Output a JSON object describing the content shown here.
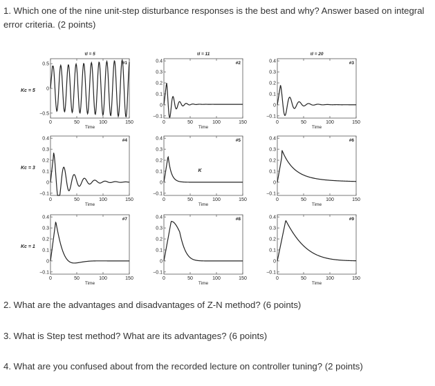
{
  "questions": {
    "q1": "1. Which one of the nine unit-step disturbance responses is the best and why? Answer based on integral error criteria. (2 points)",
    "q2": "2. What are the advantages and disadvantages of Z-N method? (6 points)",
    "q3": "3. What is Step test method? What are its advantages? (6 points)",
    "q4": "4. What are you confused about from the recorded lecture on controller tuning? (2 points)"
  },
  "figure": {
    "col_headers": [
      "τI = 5",
      "τI = 11",
      "τI = 20"
    ],
    "row_labels": [
      "Kc = 5",
      "Kc = 3",
      "Kc = 1"
    ],
    "x_label": "Time",
    "x_ticks": [
      "0",
      "50",
      "100",
      "150"
    ],
    "y_ticks_row1_col1": [
      "0.5",
      "0",
      "−0.5"
    ],
    "y_ticks": [
      "0.4",
      "0.3",
      "0.2",
      "0.1",
      "0",
      "−0.1"
    ],
    "annotation_K": "K",
    "panels": [
      {
        "tag": "#1"
      },
      {
        "tag": "#2"
      },
      {
        "tag": "#3"
      },
      {
        "tag": "#4"
      },
      {
        "tag": "#5"
      },
      {
        "tag": "#6"
      },
      {
        "tag": "#7"
      },
      {
        "tag": "#8"
      },
      {
        "tag": "#9"
      }
    ]
  },
  "chart_data": {
    "type": "line",
    "xlabel": "Time",
    "xlim": [
      0,
      150
    ],
    "charts": [
      {
        "tag": "#1",
        "ylim": [
          -0.6,
          0.6
        ],
        "peak": 0.5,
        "behaviour": "sustained oscillation"
      },
      {
        "tag": "#2",
        "ylim": [
          -0.12,
          0.42
        ],
        "peak": 0.18,
        "behaviour": "fast damped oscillation"
      },
      {
        "tag": "#3",
        "ylim": [
          -0.12,
          0.42
        ],
        "peak": 0.17,
        "behaviour": "damped, settles near 0"
      },
      {
        "tag": "#4",
        "ylim": [
          -0.12,
          0.42
        ],
        "peak": 0.25,
        "behaviour": "damped oscillation"
      },
      {
        "tag": "#5",
        "ylim": [
          -0.12,
          0.42
        ],
        "peak": 0.24,
        "behaviour": "quick settle"
      },
      {
        "tag": "#6",
        "ylim": [
          -0.12,
          0.42
        ],
        "peak": 0.24,
        "behaviour": "slow decay"
      },
      {
        "tag": "#7",
        "ylim": [
          -0.12,
          0.42
        ],
        "peak": 0.36,
        "behaviour": "overshoot then settle"
      },
      {
        "tag": "#8",
        "ylim": [
          -0.12,
          0.42
        ],
        "peak": 0.36,
        "behaviour": "slow return"
      },
      {
        "tag": "#9",
        "ylim": [
          -0.12,
          0.42
        ],
        "peak": 0.37,
        "behaviour": "very slow return"
      }
    ]
  }
}
